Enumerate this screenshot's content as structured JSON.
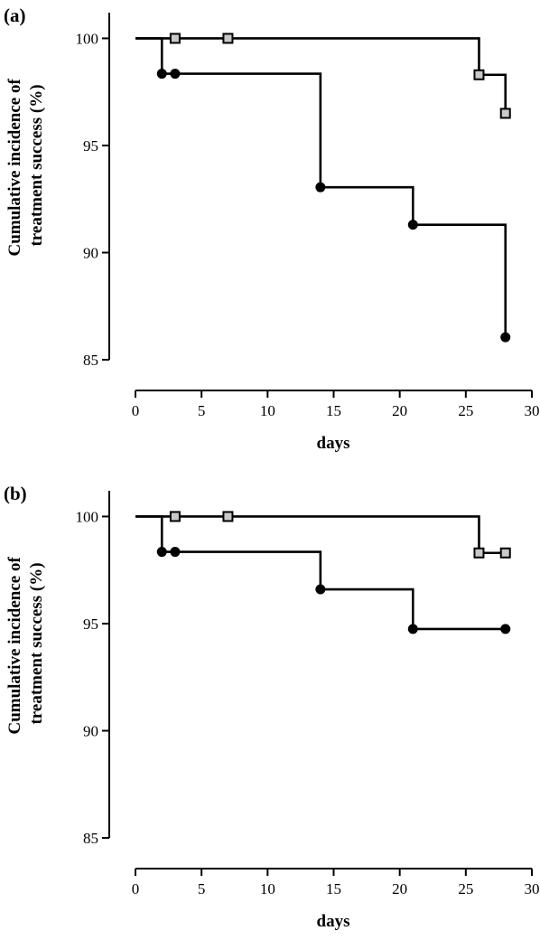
{
  "chart_data": [
    {
      "type": "line",
      "panel_label": "(a)",
      "xlabel": "days",
      "ylabel_lines": [
        "Cumulative incidence of",
        "treatment success (%)"
      ],
      "xlim": [
        0,
        30
      ],
      "ylim": [
        85,
        101.2
      ],
      "xticks": [
        0,
        5,
        10,
        15,
        20,
        25,
        30
      ],
      "yticks": [
        85,
        90,
        95,
        100
      ],
      "step": true,
      "grid": false,
      "series": [
        {
          "marker": "square",
          "x": [
            0,
            3,
            7,
            26,
            28
          ],
          "y": [
            100,
            100,
            100,
            98.3,
            96.5
          ],
          "marked": [
            false,
            true,
            true,
            true,
            true
          ]
        },
        {
          "marker": "circle",
          "x": [
            0,
            2,
            3,
            14,
            21,
            28
          ],
          "y": [
            100,
            98.35,
            98.35,
            93.05,
            91.3,
            86.05
          ],
          "marked": [
            false,
            true,
            true,
            true,
            true,
            true
          ]
        }
      ]
    },
    {
      "type": "line",
      "panel_label": "(b)",
      "xlabel": "days",
      "ylabel_lines": [
        "Cumulative incidence of",
        "treatment success (%)"
      ],
      "xlim": [
        0,
        30
      ],
      "ylim": [
        85,
        101.2
      ],
      "xticks": [
        0,
        5,
        10,
        15,
        20,
        25,
        30
      ],
      "yticks": [
        85,
        90,
        95,
        100
      ],
      "step": true,
      "grid": false,
      "series": [
        {
          "marker": "square",
          "x": [
            0,
            3,
            7,
            26,
            28
          ],
          "y": [
            100,
            100,
            100,
            98.3,
            98.3
          ],
          "marked": [
            false,
            true,
            true,
            true,
            true
          ]
        },
        {
          "marker": "circle",
          "x": [
            0,
            2,
            3,
            14,
            21,
            28
          ],
          "y": [
            100,
            98.35,
            98.35,
            96.6,
            94.75,
            94.75
          ],
          "marked": [
            false,
            true,
            true,
            true,
            true,
            true
          ]
        }
      ]
    }
  ]
}
